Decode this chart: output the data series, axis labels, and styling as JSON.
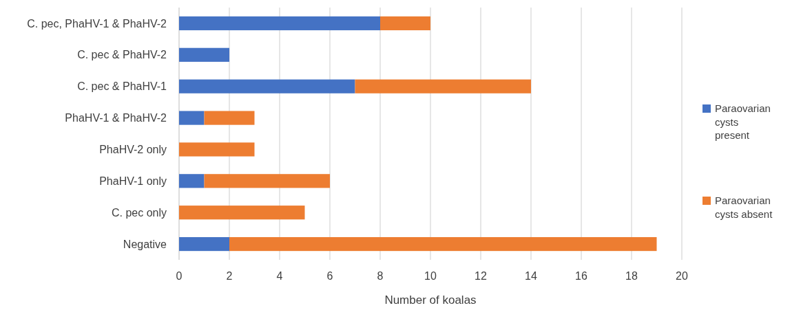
{
  "chart_data": {
    "type": "bar",
    "orientation": "horizontal",
    "stacked": true,
    "xlabel": "Number of koalas",
    "categories": [
      "C. pec, PhaHV-1 & PhaHV-2",
      "C. pec & PhaHV-2",
      "C. pec & PhaHV-1",
      "PhaHV-1 & PhaHV-2",
      "PhaHV-2 only",
      "PhaHV-1 only",
      "C. pec only",
      "Negative"
    ],
    "series": [
      {
        "name": "Paraovarian cysts present",
        "color": "#4472c4",
        "values": [
          8,
          2,
          7,
          1,
          0,
          1,
          0,
          2
        ]
      },
      {
        "name": "Paraovarian cysts absent",
        "color": "#ed7d31",
        "values": [
          2,
          0,
          7,
          2,
          3,
          5,
          5,
          17
        ]
      }
    ],
    "xlim": [
      0,
      20
    ],
    "xticks": [
      0,
      2,
      4,
      6,
      8,
      10,
      12,
      14,
      16,
      18,
      20
    ],
    "grid": "x",
    "legend": "right"
  }
}
